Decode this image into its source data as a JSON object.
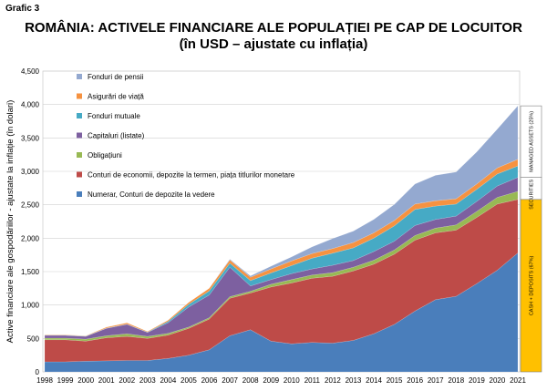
{
  "grafic_label": "Grafic 3",
  "chart_data": {
    "type": "area",
    "title": "ROMÂNIA: ACTIVELE FINANCIARE ALE POPULAȚIEI PE CAP DE LOCUITOR",
    "subtitle": "(în USD – ajustate cu inflația)",
    "xlabel": "",
    "ylabel": "Active financiare ale gospodăriilor - ajustate la inflație (în dolari)",
    "x": [
      "1998",
      "1999",
      "2000",
      "2001",
      "2002",
      "2003",
      "2004",
      "2005",
      "2006",
      "2007",
      "2008",
      "2009",
      "2010",
      "2011",
      "2012",
      "2013",
      "2014",
      "2015",
      "2016",
      "2017",
      "2018",
      "2019",
      "2020",
      "2021"
    ],
    "ylim": [
      0,
      4500
    ],
    "yticks": [
      "0",
      "500",
      "1,000",
      "1,500",
      "2,000",
      "2,500",
      "3,000",
      "3,500",
      "4,000",
      "4,500"
    ],
    "grid": true,
    "legend_position": "top-left",
    "stacked": true,
    "series": [
      {
        "name": "Numerar, Conturi de depozite la vedere",
        "color": "#4A7EBB",
        "values": [
          150,
          150,
          160,
          165,
          170,
          170,
          200,
          250,
          330,
          540,
          630,
          460,
          420,
          440,
          430,
          470,
          570,
          710,
          910,
          1080,
          1130,
          1320,
          1520,
          1780
        ]
      },
      {
        "name": "Conturi de economii, depozite la termen, piața titlurilor monetare",
        "color": "#BE4B48",
        "values": [
          330,
          330,
          300,
          345,
          360,
          330,
          350,
          400,
          460,
          560,
          550,
          810,
          910,
          960,
          1000,
          1040,
          1040,
          1050,
          1060,
          1000,
          990,
          990,
          990,
          800
        ]
      },
      {
        "name": "Obligațiuni",
        "color": "#98B954",
        "values": [
          25,
          25,
          30,
          30,
          40,
          30,
          25,
          20,
          20,
          25,
          25,
          40,
          50,
          50,
          55,
          55,
          60,
          65,
          70,
          70,
          80,
          90,
          100,
          120
        ]
      },
      {
        "name": "Capitaluri (listate)",
        "color": "#7D60A0",
        "values": [
          40,
          40,
          40,
          110,
          140,
          60,
          160,
          300,
          340,
          440,
          80,
          70,
          90,
          90,
          110,
          100,
          130,
          130,
          150,
          130,
          130,
          150,
          170,
          210
        ]
      },
      {
        "name": "Fonduri mutuale",
        "color": "#46AAC5",
        "values": [
          5,
          5,
          5,
          5,
          5,
          5,
          20,
          40,
          60,
          60,
          80,
          100,
          120,
          160,
          180,
          190,
          200,
          230,
          240,
          200,
          180,
          180,
          180,
          170
        ]
      },
      {
        "name": "Asigurări de viață",
        "color": "#F69240",
        "values": [
          5,
          5,
          5,
          15,
          20,
          10,
          20,
          30,
          40,
          50,
          50,
          60,
          70,
          70,
          70,
          80,
          80,
          80,
          80,
          80,
          80,
          80,
          90,
          100
        ]
      },
      {
        "name": "Fonduri de pensii",
        "color": "#94A9D0",
        "values": [
          0,
          0,
          0,
          0,
          0,
          0,
          0,
          0,
          0,
          10,
          20,
          40,
          60,
          100,
          150,
          170,
          200,
          240,
          300,
          380,
          400,
          480,
          580,
          800
        ]
      }
    ],
    "side_bars": [
      {
        "label": "CASH + DEPOSITS (67%)",
        "color": "#FFC000"
      },
      {
        "label": "SECURITIES (8%)",
        "color": "#FFFFFF"
      },
      {
        "label": "MANAGED ASSETS (25%)",
        "color": "#FFFFFF"
      }
    ]
  }
}
